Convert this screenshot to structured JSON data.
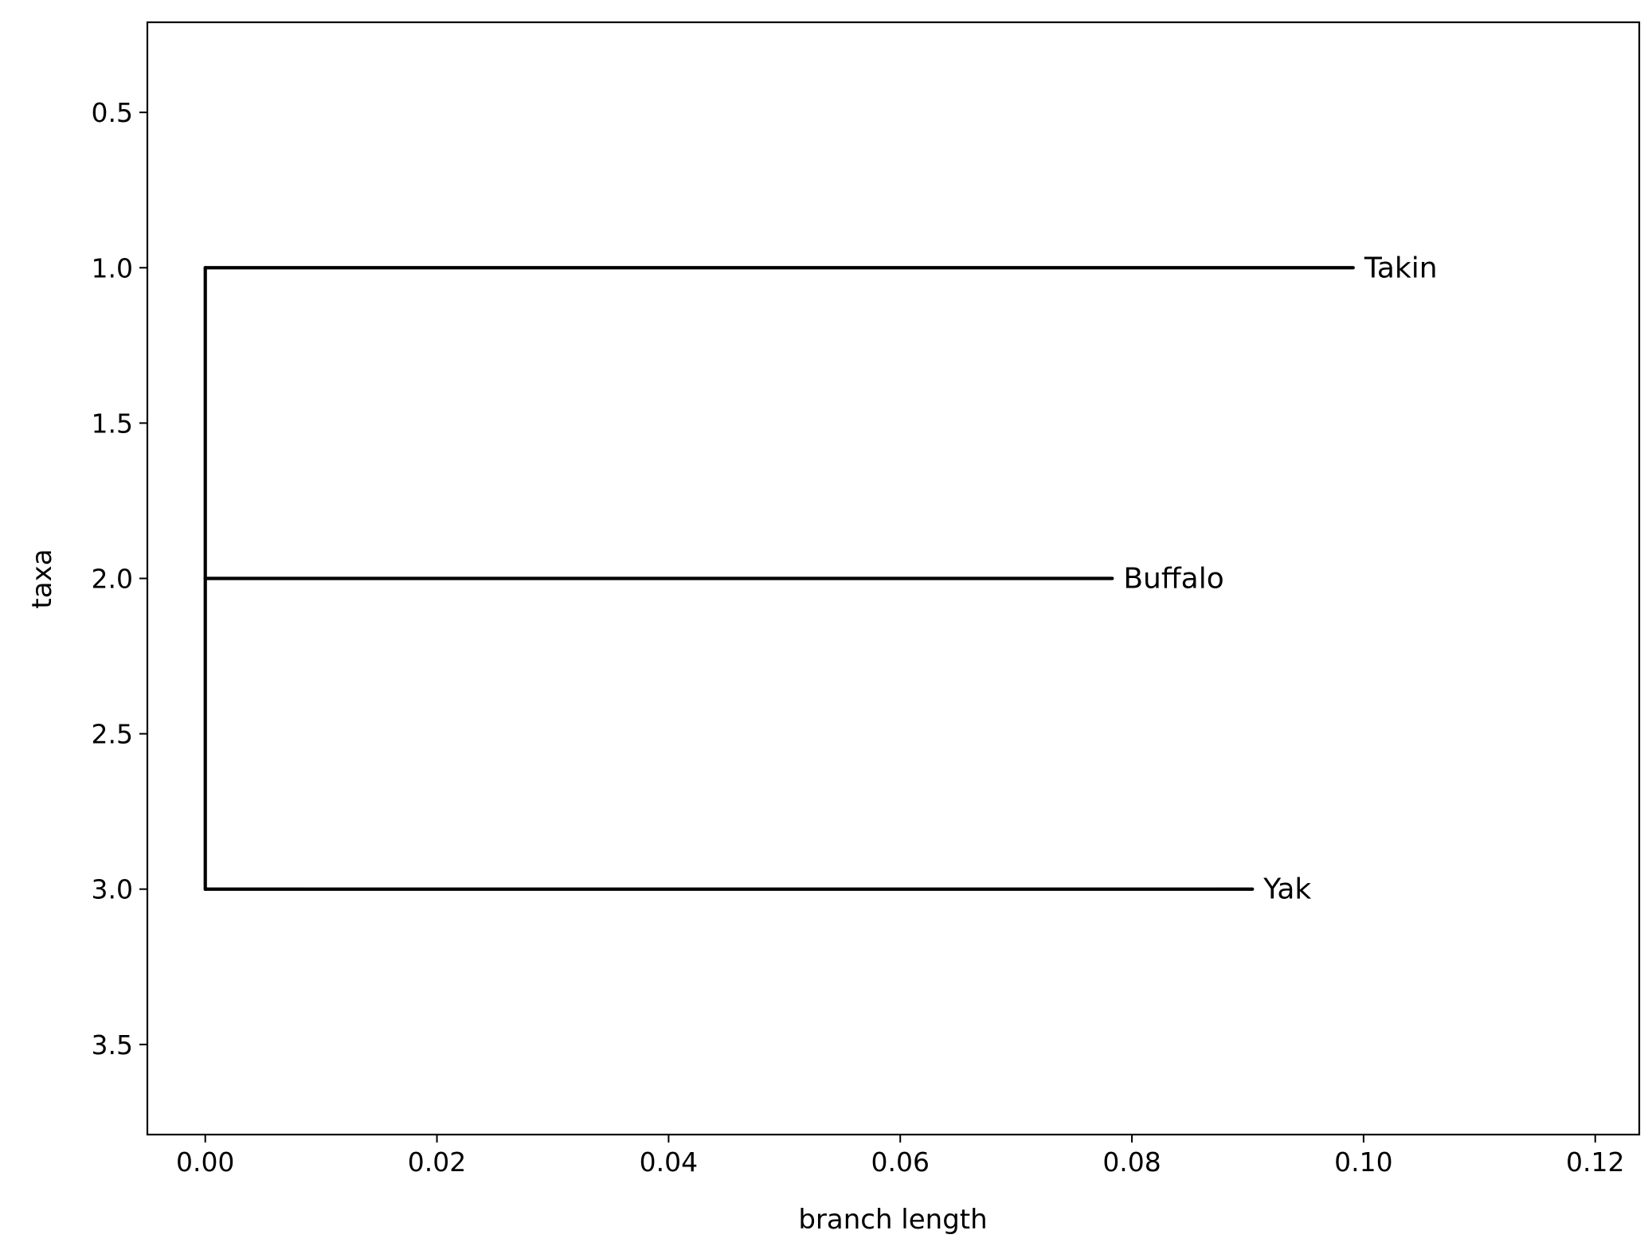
{
  "chart_data": {
    "type": "tree",
    "title": "",
    "xlabel": "branch length",
    "ylabel": "taxa",
    "xlim": [
      -0.005,
      0.1238
    ],
    "ylim": [
      3.79,
      0.21
    ],
    "y_inverted": true,
    "grid": false,
    "xticks": [
      0.0,
      0.02,
      0.04,
      0.06,
      0.08,
      0.1,
      0.12
    ],
    "xtick_labels": [
      "0.00",
      "0.02",
      "0.04",
      "0.06",
      "0.08",
      "0.10",
      "0.12"
    ],
    "yticks": [
      0.5,
      1.0,
      1.5,
      2.0,
      2.5,
      3.0,
      3.5
    ],
    "ytick_labels": [
      "0.5",
      "1.0",
      "1.5",
      "2.0",
      "2.5",
      "3.0",
      "3.5"
    ],
    "root": {
      "x": 0.0,
      "y_min": 1.0,
      "y_max": 3.0
    },
    "leaves": [
      {
        "name": "Takin",
        "y": 1.0,
        "branch_length": 0.0991
      },
      {
        "name": "Buffalo",
        "y": 2.0,
        "branch_length": 0.0783
      },
      {
        "name": "Yak",
        "y": 3.0,
        "branch_length": 0.0904
      }
    ],
    "line_color": "#000000"
  }
}
